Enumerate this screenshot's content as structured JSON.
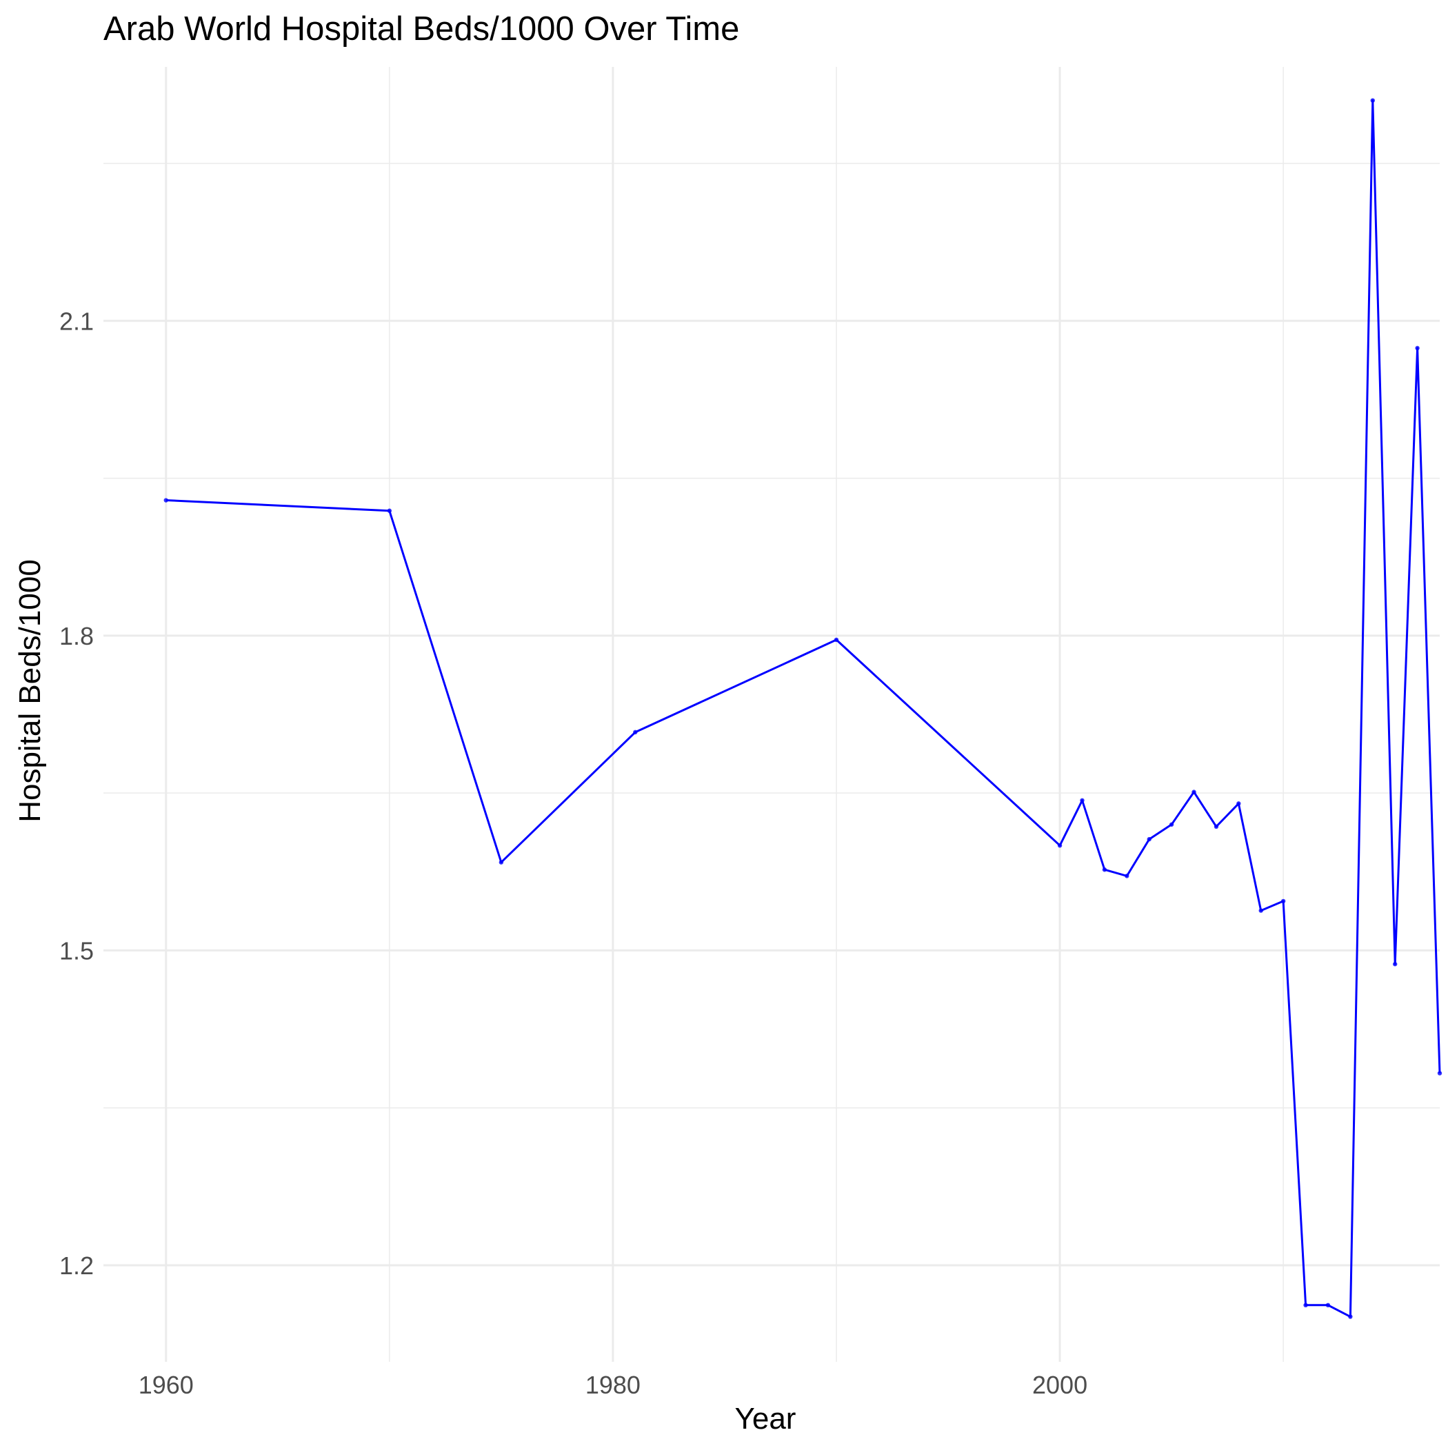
{
  "chart_data": {
    "type": "line",
    "title": "Arab World Hospital Beds/1000 Over Time",
    "xlabel": "Year",
    "ylabel": "Hospital Beds/1000",
    "xlim": [
      1957.2,
      2017.0
    ],
    "ylim": [
      1.108,
      2.342
    ],
    "x_ticks": [
      1960,
      1980,
      2000
    ],
    "x_tick_labels": [
      "1960",
      "1980",
      "2000"
    ],
    "y_ticks": [
      1.2,
      1.5,
      1.8,
      2.1
    ],
    "y_tick_labels": [
      "1.2",
      "1.5",
      "1.8",
      "2.1"
    ],
    "grid": true,
    "legend": "none",
    "colors": {
      "line": "#0000ff",
      "grid": "#ebebeb",
      "tick_text": "#4d4d4d"
    },
    "series": [
      {
        "x": [
          1960,
          1970,
          1975,
          1981,
          1990,
          2000,
          2001,
          2002,
          2003,
          2004,
          2005,
          2006,
          2007,
          2008,
          2009,
          2010,
          2011,
          2012,
          2013,
          2014,
          2015,
          2016,
          2017
        ],
        "y": [
          1.929,
          1.919,
          1.584,
          1.708,
          1.796,
          1.6,
          1.643,
          1.577,
          1.571,
          1.606,
          1.62,
          1.651,
          1.618,
          1.64,
          1.538,
          1.547,
          1.162,
          1.162,
          1.151,
          2.31,
          1.487,
          2.074,
          1.383
        ]
      }
    ]
  }
}
